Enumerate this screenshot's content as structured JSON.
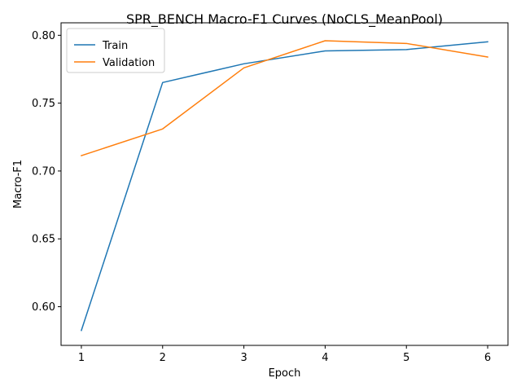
{
  "chart_data": {
    "type": "line",
    "title": "SPR_BENCH Macro-F1 Curves (NoCLS_MeanPool)",
    "xlabel": "Epoch",
    "ylabel": "Macro-F1",
    "x": [
      1,
      2,
      3,
      4,
      5,
      6
    ],
    "xticks": [
      "1",
      "2",
      "3",
      "4",
      "5",
      "6"
    ],
    "yticks": [
      "0.60",
      "0.65",
      "0.70",
      "0.75",
      "0.80"
    ],
    "xlim": [
      0.75,
      6.25
    ],
    "ylim": [
      0.5715,
      0.8092
    ],
    "grid": false,
    "legend_position": "top-left",
    "series": [
      {
        "name": "Train",
        "color": "#1f77b4",
        "values": [
          0.5825,
          0.7652,
          0.779,
          0.7885,
          0.7895,
          0.7952
        ]
      },
      {
        "name": "Validation",
        "color": "#ff7f0e",
        "values": [
          0.7113,
          0.731,
          0.776,
          0.796,
          0.794,
          0.784
        ]
      }
    ]
  }
}
